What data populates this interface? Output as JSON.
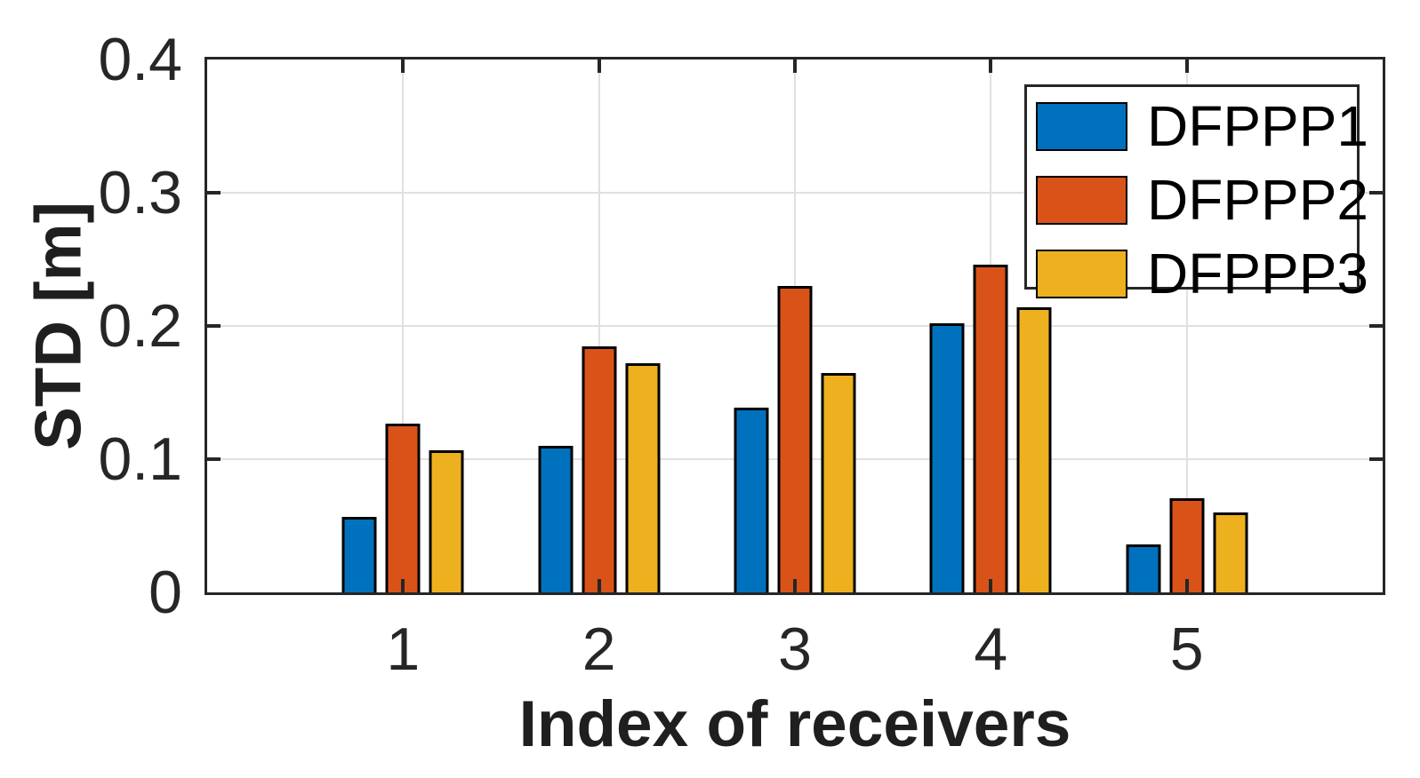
{
  "figure": {
    "background_color": "#ffffff",
    "axis_color": "#262626",
    "grid_color": "#e0e0e0",
    "bar_edge_color": "#000000"
  },
  "chart_data": {
    "type": "bar",
    "title": "",
    "xlabel": "Index of receivers",
    "ylabel": "STD [m]",
    "categories": [
      "1",
      "2",
      "3",
      "4",
      "5"
    ],
    "series": [
      {
        "name": "DFPPP1",
        "color": "#0072BD",
        "values": [
          0.057,
          0.11,
          0.139,
          0.202,
          0.036
        ]
      },
      {
        "name": "DFPPP2",
        "color": "#D95319",
        "values": [
          0.127,
          0.185,
          0.23,
          0.246,
          0.071
        ]
      },
      {
        "name": "DFPPP3",
        "color": "#EDB120",
        "values": [
          0.107,
          0.172,
          0.165,
          0.214,
          0.06
        ]
      }
    ],
    "ylim": [
      0,
      0.4
    ],
    "yticks": [
      0,
      0.1,
      0.2,
      0.3,
      0.4
    ],
    "ytick_labels": [
      "0",
      "0.1",
      "0.2",
      "0.3",
      "0.4"
    ],
    "grid": true,
    "legend_position": "top-right"
  }
}
